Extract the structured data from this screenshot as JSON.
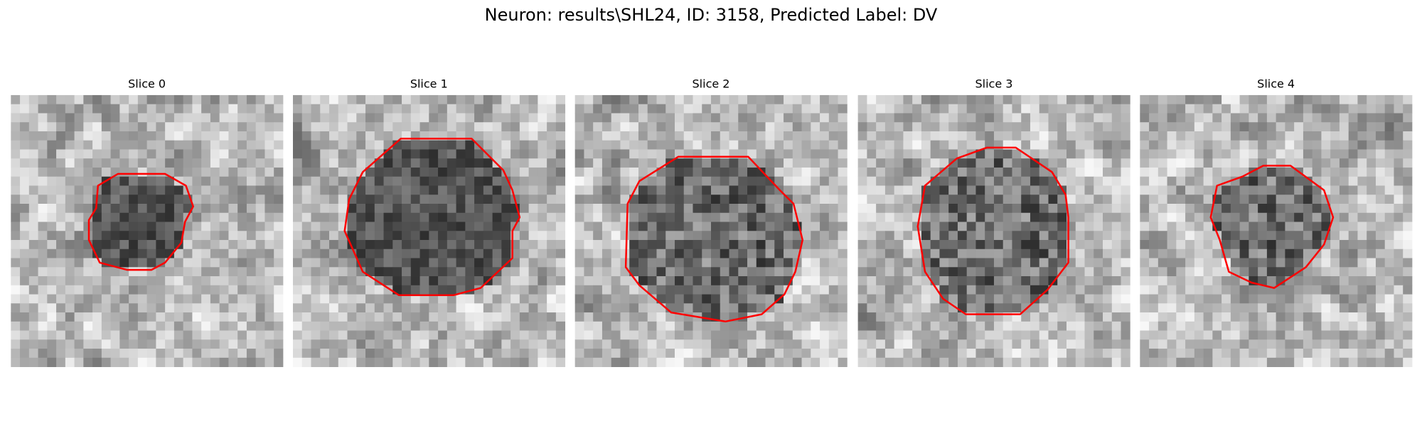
{
  "title": "Neuron: results\\SHL24, ID: 3158, Predicted Label: DV",
  "panels": [
    {
      "title": "Slice 0"
    },
    {
      "title": "Slice 1"
    },
    {
      "title": "Slice 2"
    },
    {
      "title": "Slice 3"
    },
    {
      "title": "Slice 4"
    }
  ]
}
